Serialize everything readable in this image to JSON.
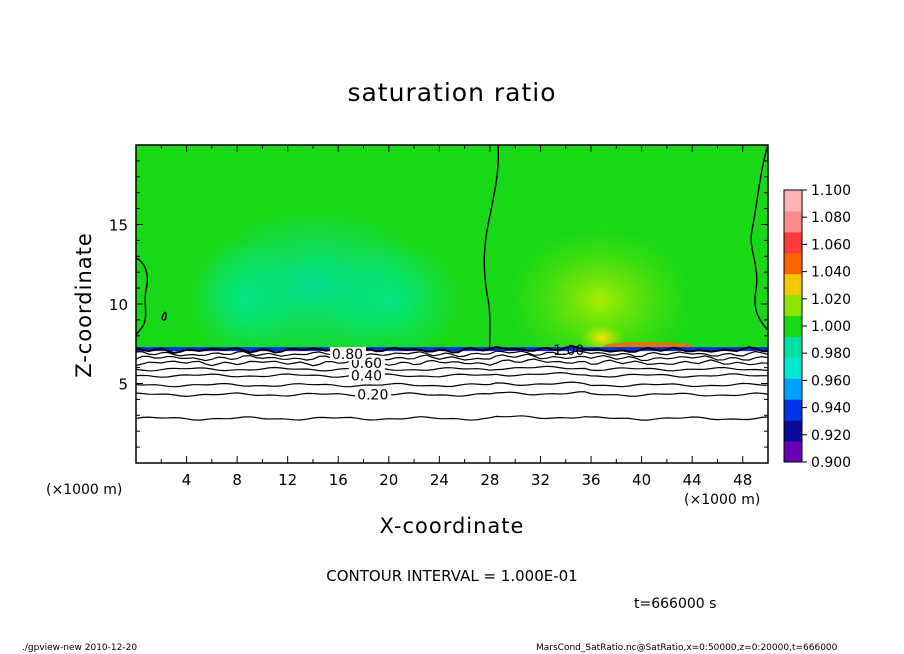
{
  "chart_data": {
    "type": "heatmap",
    "title": "saturation ratio",
    "xlabel": "X-coordinate",
    "ylabel": "Z-coordinate",
    "x_unit": "(×1000 m)",
    "xlim": [
      0,
      50
    ],
    "ylim": [
      0,
      20
    ],
    "x_ticks": [
      4,
      8,
      12,
      16,
      20,
      24,
      28,
      32,
      36,
      40,
      44,
      48
    ],
    "y_ticks": [
      5,
      10,
      15
    ],
    "colorbar": {
      "levels": [
        0.9,
        0.92,
        0.94,
        0.96,
        0.98,
        1.0,
        1.02,
        1.04,
        1.06,
        1.08,
        1.1
      ],
      "labels": [
        "0.900",
        "0.920",
        "0.940",
        "0.960",
        "0.980",
        "1.000",
        "1.020",
        "1.040",
        "1.060",
        "1.080",
        "1.100"
      ],
      "colors": [
        "#6a00b4",
        "#0a0a96",
        "#0032e6",
        "#00a0ff",
        "#00e6d2",
        "#00e0a0",
        "#18d818",
        "#8ce600",
        "#f5c800",
        "#ff6400",
        "#ff3c3c",
        "#ff8c8c",
        "#ffb4b4"
      ]
    },
    "contour_lines": [
      {
        "level": 0.2,
        "label": "0.20",
        "z": 4.3
      },
      {
        "level": 0.3,
        "label": "",
        "z": 4.9
      },
      {
        "level": 0.4,
        "label": "0.40",
        "z": 5.5
      },
      {
        "level": 0.5,
        "label": "",
        "z": 5.9
      },
      {
        "level": 0.6,
        "label": "0.60",
        "z": 6.3
      },
      {
        "level": 0.7,
        "label": "",
        "z": 6.6
      },
      {
        "level": 0.8,
        "label": "0.80",
        "z": 6.85
      },
      {
        "level": 1.0,
        "label": "1.00",
        "z": 7.1
      }
    ],
    "label_positions": [
      {
        "text": "0.20",
        "x": 17.5,
        "z": 4.3
      },
      {
        "text": "0.40",
        "x": 17.0,
        "z": 5.5
      },
      {
        "text": "0.60",
        "x": 17.0,
        "z": 6.3
      },
      {
        "text": "0.80",
        "x": 15.5,
        "z": 6.85
      },
      {
        "text": "1.00",
        "x": 33.0,
        "z": 7.1
      }
    ],
    "dry_layer_bottom_z": 2.8,
    "saturated_boundary_z": 7.1,
    "contour_interval": "CONTOUR INTERVAL = 1.000E-01",
    "time": "t=666000 s"
  },
  "footer": {
    "left": "./gpview-new 2010-12-20",
    "right": "MarsCond_SatRatio.nc@SatRatio,x=0:50000,z=0:20000,t=666000"
  }
}
